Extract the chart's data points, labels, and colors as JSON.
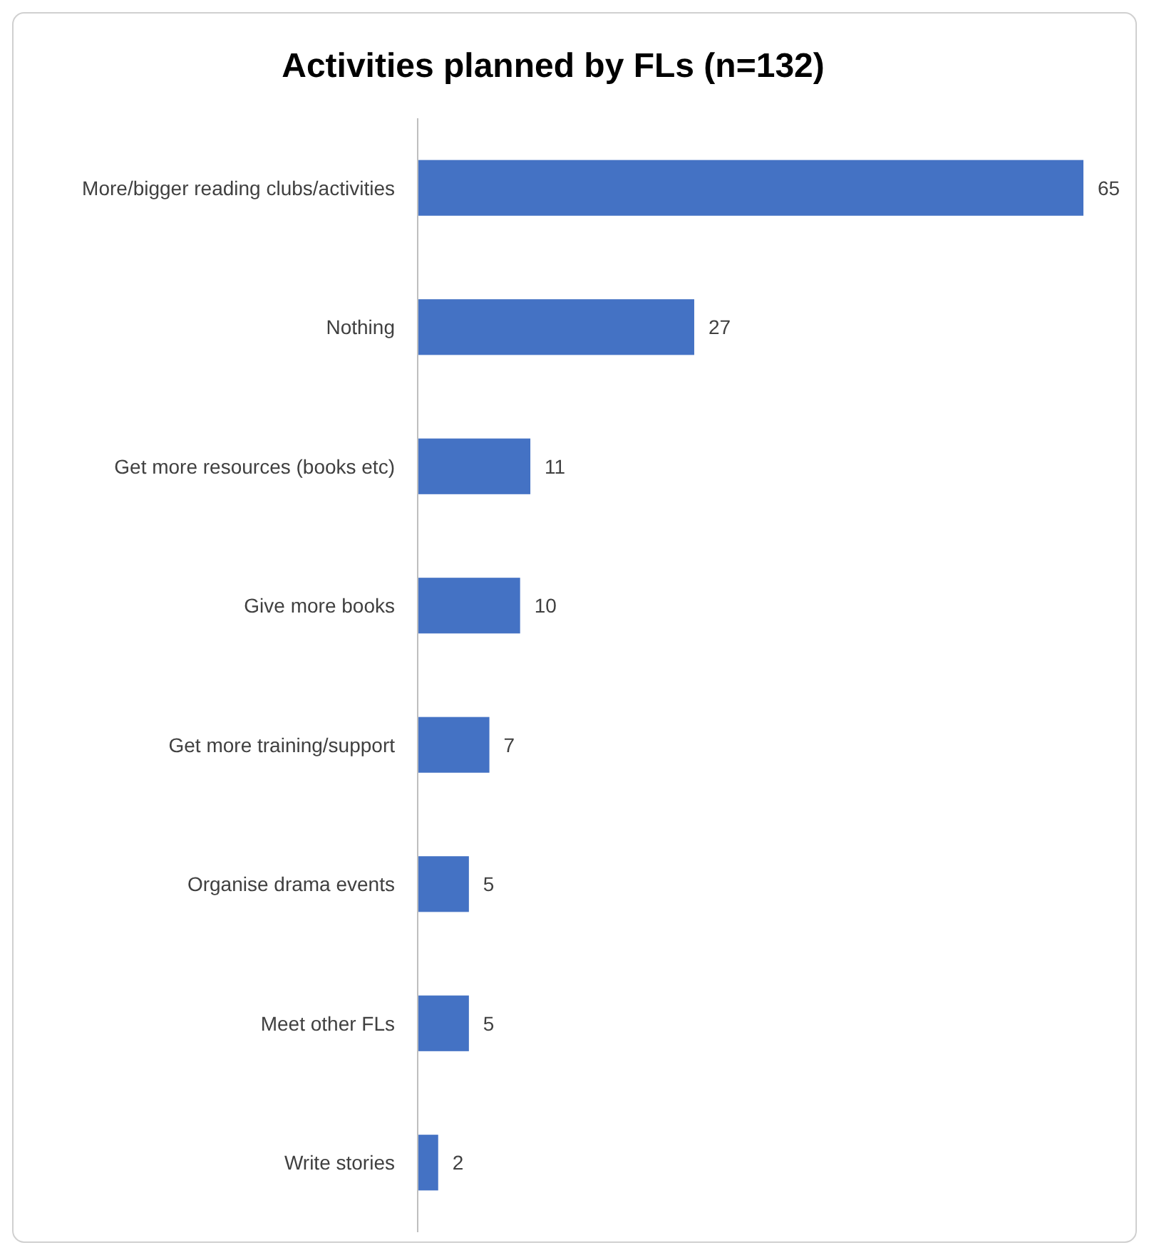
{
  "chart_data": {
    "type": "bar",
    "orientation": "horizontal",
    "title": "Activities planned by FLs (n=132)",
    "categories": [
      "More/bigger  reading clubs/activities",
      "Nothing",
      "Get more resources (books etc)",
      "Give more books",
      "Get more training/support",
      "Organise drama events",
      "Meet other FLs",
      "Write stories"
    ],
    "values": [
      65,
      27,
      11,
      10,
      7,
      5,
      5,
      2
    ],
    "color": "#4472c4",
    "data_labels": true
  }
}
